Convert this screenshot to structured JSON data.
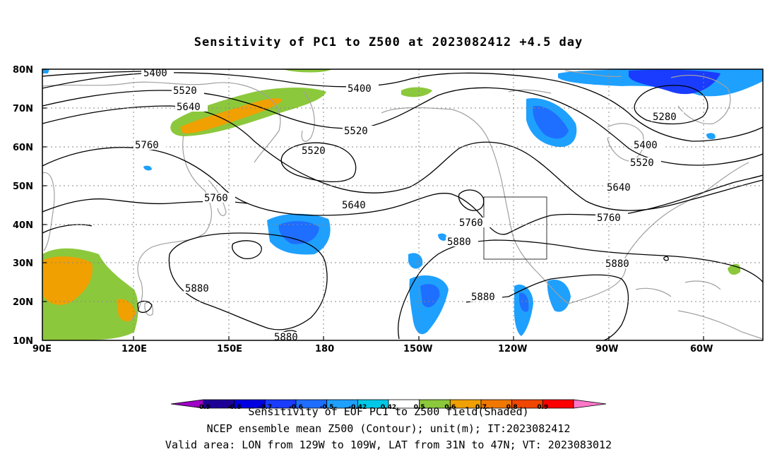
{
  "title": "Sensitivity of PC1 to Z500 at 2023082412 +4.5 day",
  "lat_ticks": [
    "80N",
    "70N",
    "60N",
    "50N",
    "40N",
    "30N",
    "20N",
    "10N"
  ],
  "lon_ticks": [
    "90E",
    "120E",
    "150E",
    "180",
    "150W",
    "120W",
    "90W",
    "60W"
  ],
  "contour_labels": {
    "c5400a": "5400",
    "c5400b": "5400",
    "c5400c": "5400",
    "c5520a": "5520",
    "c5520b": "5520",
    "c5520c": "5520",
    "c5520d": "5520",
    "c5640a": "5640",
    "c5640b": "5640",
    "c5640c": "5640",
    "c5760a": "5760",
    "c5760b": "5760",
    "c5760c": "5760",
    "c5760d": "5760",
    "c5880a": "5880",
    "c5880b": "5880",
    "c5880c": "5880",
    "c5880d": "5880",
    "c5880e": "5880",
    "c5280": "5280"
  },
  "colorbar": {
    "labels": [
      "-0.9",
      "-0.8",
      "-0.7",
      "-0.6",
      "-0.5",
      "-0.42",
      "0.42",
      "0.5",
      "0.6",
      "0.7",
      "0.8",
      "0.9"
    ],
    "colors": [
      "#a000c8",
      "#1e0096",
      "#0000e0",
      "#1a3cff",
      "#1e6eff",
      "#1ea0ff",
      "#00c8e6",
      "#ffffff",
      "#8cc83c",
      "#f0a000",
      "#f07800",
      "#f04600",
      "#ff0000",
      "#ff78c8"
    ]
  },
  "footer": {
    "line1": "Sensitivity of EOF PC1 to Z500 field(Shaded)",
    "line2": "NCEP ensemble mean Z500 (Contour); unit(m); IT:2023082412",
    "line3": "Valid area: LON from 129W to 109W, LAT from 31N to 47N; VT: 2023083012"
  }
}
